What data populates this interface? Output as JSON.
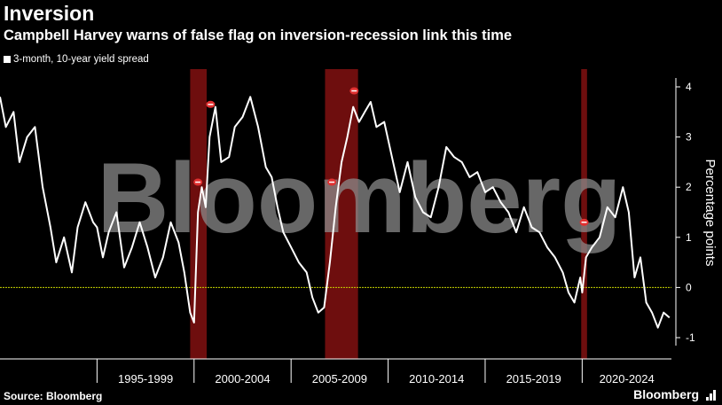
{
  "header": {
    "title": "Inversion",
    "subtitle": "Campbell Harvey warns of false flag on inversion-recession link this time"
  },
  "footer": {
    "source": "Source: Bloomberg",
    "brand": "Bloomberg"
  },
  "watermark": "Bloomberg",
  "icons": {
    "brand": "bar-chart-icon"
  },
  "colors": {
    "background": "#000000",
    "series": "#ffffff",
    "recession": "#7a1010",
    "zero_line": "#c8d400",
    "marker": "#e03030",
    "gridline": "#333333",
    "text": "#ffffff",
    "watermark": "#8a8a8a"
  },
  "chart_data": {
    "type": "line",
    "ylabel": "Percentage points",
    "ylim": [
      -1.0,
      4.0
    ],
    "xlim": [
      1990.0,
      2024.6
    ],
    "yticks": [
      -1,
      0,
      1,
      2,
      3,
      4
    ],
    "grid": false,
    "legend": "top-left",
    "period_labels": [
      {
        "label": "1995-1999",
        "start": 1995,
        "end": 2000
      },
      {
        "label": "2000-2004",
        "start": 2000,
        "end": 2005
      },
      {
        "label": "2005-2009",
        "start": 2005,
        "end": 2010
      },
      {
        "label": "2010-2014",
        "start": 2010,
        "end": 2015
      },
      {
        "label": "2015-2019",
        "start": 2015,
        "end": 2020
      },
      {
        "label": "2020-2024",
        "start": 2020,
        "end": 2025
      }
    ],
    "recessions": [
      {
        "start": 1999.8,
        "end": 2000.65
      },
      {
        "start": 2006.75,
        "end": 2008.45
      },
      {
        "start": 2019.95,
        "end": 2020.25
      }
    ],
    "markers": [
      {
        "x": 2000.2,
        "y": 2.1
      },
      {
        "x": 2000.85,
        "y": 3.65
      },
      {
        "x": 2007.1,
        "y": 2.1
      },
      {
        "x": 2008.25,
        "y": 3.92
      },
      {
        "x": 2020.1,
        "y": 1.3
      }
    ],
    "zero_line": 0,
    "series": [
      {
        "name": "3-month, 10-year yield spread",
        "x": [
          1990.0,
          1990.3,
          1990.7,
          1991.0,
          1991.4,
          1991.8,
          1992.2,
          1992.6,
          1992.9,
          1993.3,
          1993.7,
          1994.0,
          1994.4,
          1994.8,
          1995.0,
          1995.3,
          1995.6,
          1996.0,
          1996.4,
          1996.8,
          1997.2,
          1997.6,
          1998.0,
          1998.4,
          1998.8,
          1999.2,
          1999.5,
          1999.8,
          2000.0,
          2000.2,
          2000.4,
          2000.6,
          2000.8,
          2001.1,
          2001.4,
          2001.8,
          2002.1,
          2002.5,
          2002.9,
          2003.3,
          2003.7,
          2004.0,
          2004.3,
          2004.6,
          2005.0,
          2005.4,
          2005.8,
          2006.1,
          2006.4,
          2006.7,
          2007.0,
          2007.3,
          2007.6,
          2007.9,
          2008.2,
          2008.5,
          2008.8,
          2009.1,
          2009.4,
          2009.8,
          2010.2,
          2010.6,
          2011.0,
          2011.4,
          2011.8,
          2012.2,
          2012.6,
          2013.0,
          2013.4,
          2013.8,
          2014.2,
          2014.6,
          2015.0,
          2015.4,
          2015.8,
          2016.2,
          2016.6,
          2017.0,
          2017.4,
          2017.8,
          2018.2,
          2018.6,
          2019.0,
          2019.3,
          2019.6,
          2019.9,
          2020.0,
          2020.2,
          2020.5,
          2020.9,
          2021.3,
          2021.7,
          2022.1,
          2022.4,
          2022.7,
          2023.0,
          2023.3,
          2023.6,
          2023.9,
          2024.2,
          2024.5
        ],
        "values": [
          3.8,
          3.2,
          3.5,
          2.5,
          3.0,
          3.2,
          2.0,
          1.2,
          0.5,
          1.0,
          0.3,
          1.2,
          1.7,
          1.3,
          1.2,
          0.6,
          1.1,
          1.5,
          0.4,
          0.8,
          1.3,
          0.8,
          0.2,
          0.6,
          1.3,
          0.9,
          0.3,
          -0.5,
          -0.7,
          1.5,
          2.0,
          1.6,
          3.0,
          3.6,
          2.5,
          2.6,
          3.2,
          3.4,
          3.8,
          3.2,
          2.4,
          2.2,
          1.6,
          1.1,
          0.8,
          0.5,
          0.3,
          -0.2,
          -0.5,
          -0.4,
          0.5,
          1.6,
          2.5,
          3.0,
          3.6,
          3.3,
          3.5,
          3.7,
          3.2,
          3.3,
          2.6,
          1.9,
          2.5,
          1.8,
          1.5,
          1.4,
          2.0,
          2.8,
          2.6,
          2.5,
          2.2,
          2.3,
          1.9,
          2.0,
          1.7,
          1.5,
          1.1,
          1.6,
          1.2,
          1.1,
          0.8,
          0.6,
          0.3,
          -0.1,
          -0.3,
          0.2,
          -0.1,
          0.6,
          0.8,
          1.0,
          1.6,
          1.4,
          2.0,
          1.5,
          0.2,
          0.6,
          -0.3,
          -0.5,
          -0.8,
          -0.5,
          -0.6
        ]
      }
    ]
  }
}
